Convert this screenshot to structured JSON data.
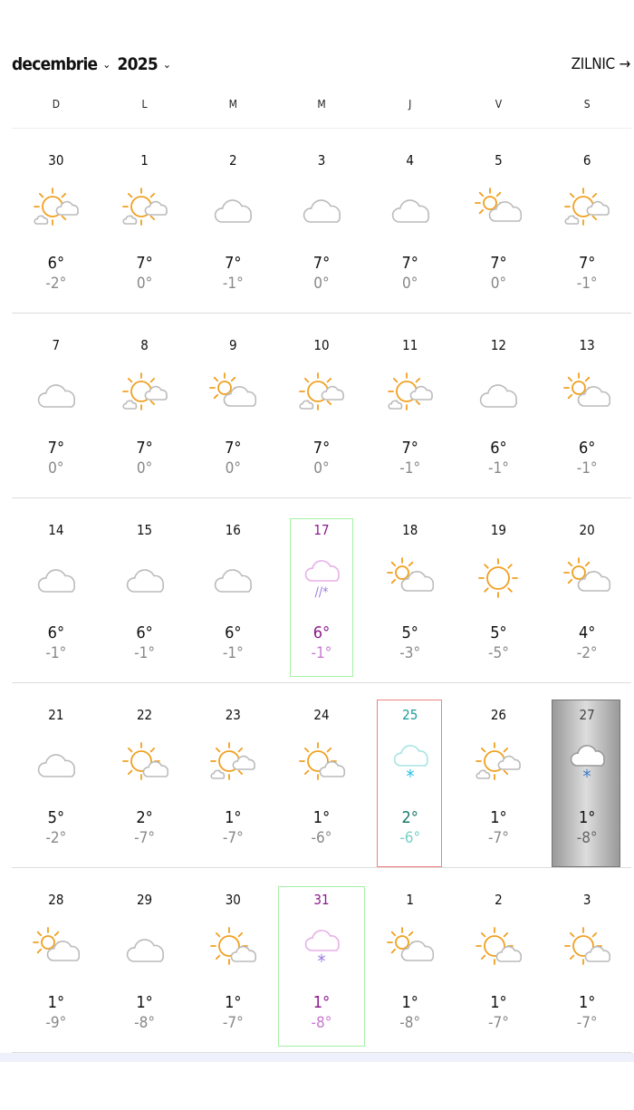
{
  "header": {
    "month": "decembrie",
    "year": "2025",
    "view_link": "ZILNIC →"
  },
  "weekdays": [
    "D",
    "L",
    "M",
    "M",
    "J",
    "V",
    "S"
  ],
  "colors": {
    "today_border": "#f08080",
    "today_text": "#1a9a9a",
    "highlight_border": "#a6f0a6",
    "highlight_text": "#8b1a8b",
    "sun": "#f0a020",
    "cloud": "#bbbbbb"
  },
  "weeks": [
    [
      {
        "d": "30",
        "hi": "6°",
        "lo": "-2°",
        "icon": "sun-clouds"
      },
      {
        "d": "1",
        "hi": "7°",
        "lo": "0°",
        "icon": "sun-clouds"
      },
      {
        "d": "2",
        "hi": "7°",
        "lo": "-1°",
        "icon": "cloud"
      },
      {
        "d": "3",
        "hi": "7°",
        "lo": "0°",
        "icon": "cloud"
      },
      {
        "d": "4",
        "hi": "7°",
        "lo": "0°",
        "icon": "cloud"
      },
      {
        "d": "5",
        "hi": "7°",
        "lo": "0°",
        "icon": "partly-cloudy"
      },
      {
        "d": "6",
        "hi": "7°",
        "lo": "-1°",
        "icon": "sun-clouds"
      }
    ],
    [
      {
        "d": "7",
        "hi": "7°",
        "lo": "0°",
        "icon": "cloud"
      },
      {
        "d": "8",
        "hi": "7°",
        "lo": "0°",
        "icon": "sun-clouds"
      },
      {
        "d": "9",
        "hi": "7°",
        "lo": "0°",
        "icon": "partly-cloudy"
      },
      {
        "d": "10",
        "hi": "7°",
        "lo": "0°",
        "icon": "sun-clouds"
      },
      {
        "d": "11",
        "hi": "7°",
        "lo": "-1°",
        "icon": "sun-clouds"
      },
      {
        "d": "12",
        "hi": "6°",
        "lo": "-1°",
        "icon": "cloud"
      },
      {
        "d": "13",
        "hi": "6°",
        "lo": "-1°",
        "icon": "partly-cloudy"
      }
    ],
    [
      {
        "d": "14",
        "hi": "6°",
        "lo": "-1°",
        "icon": "cloud"
      },
      {
        "d": "15",
        "hi": "6°",
        "lo": "-1°",
        "icon": "cloud"
      },
      {
        "d": "16",
        "hi": "6°",
        "lo": "-1°",
        "icon": "cloud"
      },
      {
        "d": "17",
        "hi": "6°",
        "lo": "-1°",
        "icon": "sleet",
        "style": "holiday"
      },
      {
        "d": "18",
        "hi": "5°",
        "lo": "-3°",
        "icon": "partly-cloudy"
      },
      {
        "d": "19",
        "hi": "5°",
        "lo": "-5°",
        "icon": "sun"
      },
      {
        "d": "20",
        "hi": "4°",
        "lo": "-2°",
        "icon": "partly-cloudy"
      }
    ],
    [
      {
        "d": "21",
        "hi": "5°",
        "lo": "-2°",
        "icon": "cloud"
      },
      {
        "d": "22",
        "hi": "2°",
        "lo": "-7°",
        "icon": "sun-cloud"
      },
      {
        "d": "23",
        "hi": "1°",
        "lo": "-7°",
        "icon": "sun-clouds"
      },
      {
        "d": "24",
        "hi": "1°",
        "lo": "-6°",
        "icon": "sun-cloud"
      },
      {
        "d": "25",
        "hi": "2°",
        "lo": "-6°",
        "icon": "snow",
        "style": "today"
      },
      {
        "d": "26",
        "hi": "1°",
        "lo": "-7°",
        "icon": "sun-clouds"
      },
      {
        "d": "27",
        "hi": "1°",
        "lo": "-8°",
        "icon": "snow",
        "style": "selected"
      }
    ],
    [
      {
        "d": "28",
        "hi": "1°",
        "lo": "-9°",
        "icon": "partly-cloudy"
      },
      {
        "d": "29",
        "hi": "1°",
        "lo": "-8°",
        "icon": "cloud"
      },
      {
        "d": "30",
        "hi": "1°",
        "lo": "-7°",
        "icon": "sun-cloud"
      },
      {
        "d": "31",
        "hi": "1°",
        "lo": "-8°",
        "icon": "snow",
        "style": "holiday"
      },
      {
        "d": "1",
        "hi": "1°",
        "lo": "-8°",
        "icon": "partly-cloudy"
      },
      {
        "d": "2",
        "hi": "1°",
        "lo": "-7°",
        "icon": "sun-cloud"
      },
      {
        "d": "3",
        "hi": "1°",
        "lo": "-7°",
        "icon": "sun-cloud"
      }
    ]
  ]
}
